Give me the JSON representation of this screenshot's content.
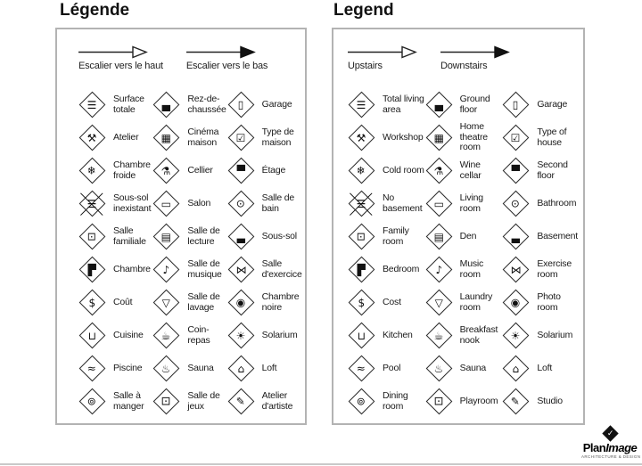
{
  "colors": {
    "ink": "#111111",
    "box_border": "#b3b3b3",
    "bottom_rule": "#c9c9c9"
  },
  "panels": [
    {
      "id": "fr",
      "title": "Légende",
      "arrows": [
        {
          "name": "stairs-up",
          "head": "open",
          "label": "Escalier vers le haut"
        },
        {
          "name": "stairs-down",
          "head": "solid",
          "label": "Escalier vers le bas"
        }
      ],
      "items": [
        {
          "icon": "total-living-area",
          "glyph": "☰",
          "label": "Surface totale"
        },
        {
          "icon": "ground-floor",
          "glyph": "▄",
          "label": "Rez-de-chaussée"
        },
        {
          "icon": "garage",
          "glyph": "▯",
          "label": "Garage"
        },
        {
          "icon": "workshop",
          "glyph": "⚒",
          "label": "Atelier"
        },
        {
          "icon": "home-theatre",
          "glyph": "▦",
          "label": "Cinéma maison"
        },
        {
          "icon": "type-of-house",
          "glyph": "☑",
          "label": "Type de maison"
        },
        {
          "icon": "cold-room",
          "glyph": "❄",
          "label": "Chambre froide"
        },
        {
          "icon": "wine-cellar",
          "glyph": "⚗",
          "label": "Cellier"
        },
        {
          "icon": "second-floor",
          "glyph": "▀",
          "label": "Étage"
        },
        {
          "icon": "no-basement",
          "glyph": "☰",
          "crossed": true,
          "label": "Sous-sol inexistant"
        },
        {
          "icon": "living-room",
          "glyph": "▭",
          "label": "Salon"
        },
        {
          "icon": "bathroom",
          "glyph": "⊙",
          "label": "Salle de bain"
        },
        {
          "icon": "family-room",
          "glyph": "⊡",
          "label": "Salle familiale"
        },
        {
          "icon": "den",
          "glyph": "▤",
          "label": "Salle de lecture"
        },
        {
          "icon": "basement",
          "glyph": "▃",
          "label": "Sous-sol"
        },
        {
          "icon": "bedroom",
          "glyph": "▛",
          "label": "Chambre"
        },
        {
          "icon": "music-room",
          "glyph": "♪",
          "label": "Salle de musique"
        },
        {
          "icon": "exercise-room",
          "glyph": "⋈",
          "label": "Salle d'exercice"
        },
        {
          "icon": "cost",
          "glyph": "$",
          "label": "Coût"
        },
        {
          "icon": "laundry-room",
          "glyph": "▽",
          "label": "Salle de lavage"
        },
        {
          "icon": "photo-room",
          "glyph": "◉",
          "label": "Chambre noire"
        },
        {
          "icon": "kitchen",
          "glyph": "⊔",
          "label": "Cuisine"
        },
        {
          "icon": "breakfast-nook",
          "glyph": "☕",
          "label": "Coin-repas"
        },
        {
          "icon": "solarium",
          "glyph": "☀",
          "label": "Solarium"
        },
        {
          "icon": "pool",
          "glyph": "≈",
          "label": "Piscine"
        },
        {
          "icon": "sauna",
          "glyph": "♨",
          "label": "Sauna"
        },
        {
          "icon": "loft",
          "glyph": "⌂",
          "label": "Loft"
        },
        {
          "icon": "dining-room",
          "glyph": "⊚",
          "label": "Salle à manger"
        },
        {
          "icon": "playroom",
          "glyph": "⚀",
          "label": "Salle de jeux"
        },
        {
          "icon": "studio",
          "glyph": "✎",
          "label": "Atelier d'artiste"
        }
      ]
    },
    {
      "id": "en",
      "title": "Legend",
      "arrows": [
        {
          "name": "stairs-up",
          "head": "open",
          "label": "Upstairs"
        },
        {
          "name": "stairs-down",
          "head": "solid",
          "label": "Downstairs"
        }
      ],
      "items": [
        {
          "icon": "total-living-area",
          "glyph": "☰",
          "label": "Total living area"
        },
        {
          "icon": "ground-floor",
          "glyph": "▄",
          "label": "Ground floor"
        },
        {
          "icon": "garage",
          "glyph": "▯",
          "label": "Garage"
        },
        {
          "icon": "workshop",
          "glyph": "⚒",
          "label": "Workshop"
        },
        {
          "icon": "home-theatre",
          "glyph": "▦",
          "label": "Home theatre room"
        },
        {
          "icon": "type-of-house",
          "glyph": "☑",
          "label": "Type of house"
        },
        {
          "icon": "cold-room",
          "glyph": "❄",
          "label": "Cold room"
        },
        {
          "icon": "wine-cellar",
          "glyph": "⚗",
          "label": "Wine cellar"
        },
        {
          "icon": "second-floor",
          "glyph": "▀",
          "label": "Second floor"
        },
        {
          "icon": "no-basement",
          "glyph": "☰",
          "crossed": true,
          "label": "No basement"
        },
        {
          "icon": "living-room",
          "glyph": "▭",
          "label": "Living room"
        },
        {
          "icon": "bathroom",
          "glyph": "⊙",
          "label": "Bathroom"
        },
        {
          "icon": "family-room",
          "glyph": "⊡",
          "label": "Family room"
        },
        {
          "icon": "den",
          "glyph": "▤",
          "label": "Den"
        },
        {
          "icon": "basement",
          "glyph": "▃",
          "label": "Basement"
        },
        {
          "icon": "bedroom",
          "glyph": "▛",
          "label": "Bedroom"
        },
        {
          "icon": "music-room",
          "glyph": "♪",
          "label": "Music room"
        },
        {
          "icon": "exercise-room",
          "glyph": "⋈",
          "label": "Exercise room"
        },
        {
          "icon": "cost",
          "glyph": "$",
          "label": "Cost"
        },
        {
          "icon": "laundry-room",
          "glyph": "▽",
          "label": "Laundry room"
        },
        {
          "icon": "photo-room",
          "glyph": "◉",
          "label": "Photo room"
        },
        {
          "icon": "kitchen",
          "glyph": "⊔",
          "label": "Kitchen"
        },
        {
          "icon": "breakfast-nook",
          "glyph": "☕",
          "label": "Breakfast nook"
        },
        {
          "icon": "solarium",
          "glyph": "☀",
          "label": "Solarium"
        },
        {
          "icon": "pool",
          "glyph": "≈",
          "label": "Pool"
        },
        {
          "icon": "sauna",
          "glyph": "♨",
          "label": "Sauna"
        },
        {
          "icon": "loft",
          "glyph": "⌂",
          "label": "Loft"
        },
        {
          "icon": "dining-room",
          "glyph": "⊚",
          "label": "Dining room"
        },
        {
          "icon": "playroom",
          "glyph": "⚀",
          "label": "Playroom"
        },
        {
          "icon": "studio",
          "glyph": "✎",
          "label": "Studio"
        }
      ]
    }
  ],
  "logo": {
    "plan": "Plan",
    "image": "Image",
    "tagline": "ARCHITECTURE & DESIGN",
    "mark_glyph": "✓"
  }
}
